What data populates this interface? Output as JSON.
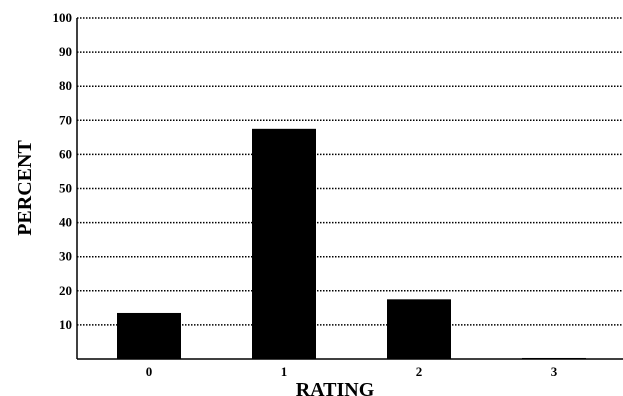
{
  "chart_data": {
    "type": "bar",
    "title": "",
    "xlabel": "RATING",
    "ylabel": "PERCENT",
    "categories": [
      "0",
      "1",
      "2",
      "3"
    ],
    "values": [
      13.5,
      67.5,
      17.5,
      0.3
    ],
    "ylim": [
      0,
      100
    ],
    "yticks": [
      10,
      20,
      30,
      40,
      50,
      60,
      70,
      80,
      90,
      100
    ],
    "grid": true,
    "grid_style": "dotted",
    "legend": "none",
    "bar_color": "#000000"
  }
}
